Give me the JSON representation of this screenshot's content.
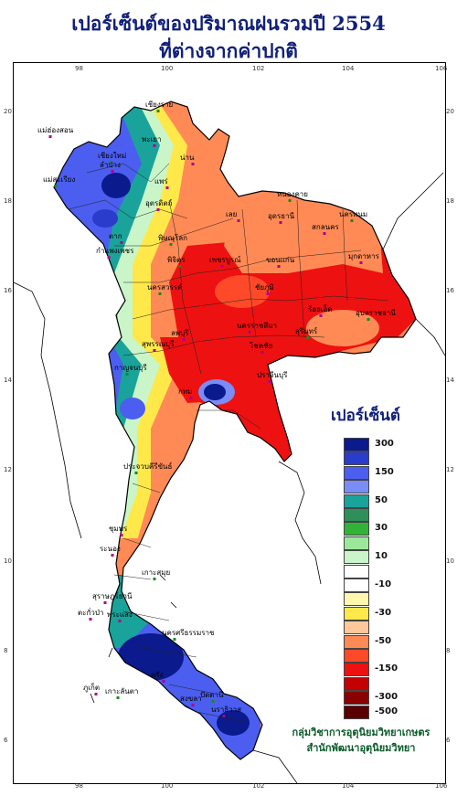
{
  "title": {
    "line1": "เปอร์เซ็นต์ของปริมาณฝนรวมปี 2554",
    "line2": "ที่ต่างจากค่าปกติ"
  },
  "axes": {
    "lon_ticks": [
      "98",
      "100",
      "102",
      "104",
      "106"
    ],
    "lat_ticks": [
      "20",
      "18",
      "16",
      "14",
      "12",
      "10",
      "8",
      "6"
    ]
  },
  "legend": {
    "title": "เปอร์เซ็นต์",
    "items": [
      {
        "label": "300",
        "color": "#0b1a8c"
      },
      {
        "label": "",
        "color": "#2a3ccc"
      },
      {
        "label": "150",
        "color": "#4b5ef0"
      },
      {
        "label": "",
        "color": "#7a8cf5"
      },
      {
        "label": "50",
        "color": "#1aa39a"
      },
      {
        "label": "",
        "color": "#2f8f5a"
      },
      {
        "label": "30",
        "color": "#33b23a"
      },
      {
        "label": "",
        "color": "#9be89b"
      },
      {
        "label": "10",
        "color": "#c9f5c9"
      },
      {
        "label": "",
        "color": "#ffffff"
      },
      {
        "label": "-10",
        "color": "#ffffff"
      },
      {
        "label": "",
        "color": "#fff7b0"
      },
      {
        "label": "-30",
        "color": "#ffe94a"
      },
      {
        "label": "",
        "color": "#ffc79a"
      },
      {
        "label": "-50",
        "color": "#ff8a55"
      },
      {
        "label": "",
        "color": "#ff4a2a"
      },
      {
        "label": "-150",
        "color": "#ee1111"
      },
      {
        "label": "",
        "color": "#c40000"
      },
      {
        "label": "-300",
        "color": "#8a0000"
      },
      {
        "label": "-500",
        "color": "#5a0000"
      }
    ]
  },
  "places": [
    {
      "name": "เชียงราย"
    },
    {
      "name": "แม่ฮ่องสอน"
    },
    {
      "name": "พะเยา"
    },
    {
      "name": "เชียงใหม่"
    },
    {
      "name": "ลำปาง"
    },
    {
      "name": "น่าน"
    },
    {
      "name": "แม่สะเรียง"
    },
    {
      "name": "แพร่"
    },
    {
      "name": "อุตรดิตถ์"
    },
    {
      "name": "หนองคาย"
    },
    {
      "name": "เลย"
    },
    {
      "name": "อุดรธานี"
    },
    {
      "name": "นครพนม"
    },
    {
      "name": "สกลนคร"
    },
    {
      "name": "ตาก"
    },
    {
      "name": "พิษณุโลก"
    },
    {
      "name": "มุกดาหาร"
    },
    {
      "name": "กำแพงเพชร"
    },
    {
      "name": "พิจิตร"
    },
    {
      "name": "เพชรบูรณ์"
    },
    {
      "name": "ขอนแก่น"
    },
    {
      "name": "นครสวรรค์"
    },
    {
      "name": "ชัยภูมิ"
    },
    {
      "name": "ร้อยเอ็ด"
    },
    {
      "name": "อุบลราชธานี"
    },
    {
      "name": "ลพบุรี"
    },
    {
      "name": "นครราชสีมา"
    },
    {
      "name": "สุรินทร์"
    },
    {
      "name": "สุพรรณบุรี"
    },
    {
      "name": "โชคชัย"
    },
    {
      "name": "กาญจนบุรี"
    },
    {
      "name": "ปราจีนบุรี"
    },
    {
      "name": "กทม"
    },
    {
      "name": "ประจวบคีรีขันธ์"
    },
    {
      "name": "ชุมพร"
    },
    {
      "name": "ระนอง"
    },
    {
      "name": "เกาะสมุย"
    },
    {
      "name": "สุราษฎร์ธานี"
    },
    {
      "name": "ตะกั่วป่า"
    },
    {
      "name": "นครศรีธรรมราช"
    },
    {
      "name": "พระแสง"
    },
    {
      "name": "ภูเก็ต"
    },
    {
      "name": "เกาะลันตา"
    },
    {
      "name": "ตรัง"
    },
    {
      "name": "สงขลา"
    },
    {
      "name": "ปัตตานี"
    },
    {
      "name": "นราธิวาส"
    }
  ],
  "credit": {
    "line1": "กลุ่มวิชาการอุตุนิยมวิทยาเกษตร",
    "line2": "สำนักพัฒนาอุตุนิยมวิทยา"
  }
}
